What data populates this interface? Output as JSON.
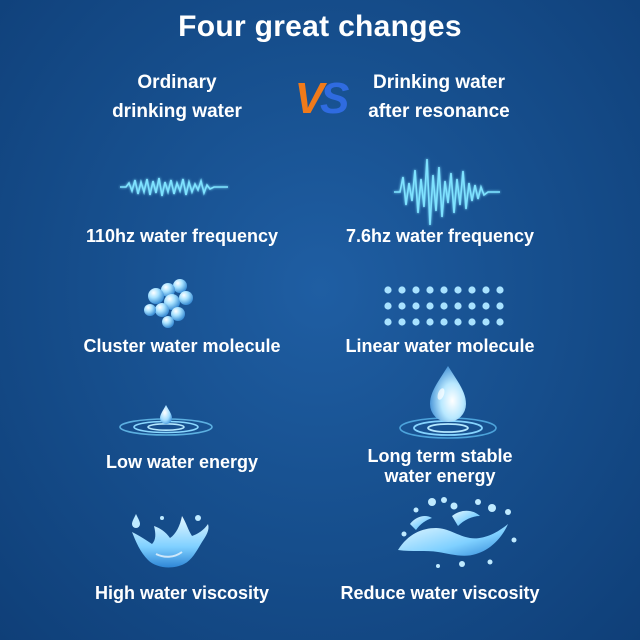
{
  "title": "Four great changes",
  "header": {
    "left": [
      "Ordinary",
      "drinking water"
    ],
    "vs": "VS",
    "right": [
      "Drinking water",
      "after resonance"
    ]
  },
  "rows": [
    {
      "left": {
        "label": "110hz water frequency",
        "icon": "small-wave-icon"
      },
      "right": {
        "label": "7.6hz water frequency",
        "icon": "large-wave-icon"
      }
    },
    {
      "left": {
        "label": "Cluster water molecule",
        "icon": "molecule-cluster-icon"
      },
      "right": {
        "label": "Linear water molecule",
        "icon": "molecule-grid-icon"
      }
    },
    {
      "left": {
        "label": "Low water energy",
        "icon": "small-drop-ripple-icon"
      },
      "right": {
        "label_lines": [
          "Long term stable",
          "water energy"
        ],
        "icon": "large-drop-ripple-icon"
      }
    },
    {
      "left": {
        "label": "High water viscosity",
        "icon": "water-splash-icon"
      },
      "right": {
        "label": "Reduce water viscosity",
        "icon": "water-splash-fine-icon"
      }
    }
  ],
  "colors": {
    "background": "#17508f",
    "vs_orange": "#f07a1a",
    "vs_blue": "#2f6be0",
    "wave": "#7fe3ff",
    "molecule": "#9fdcff"
  }
}
